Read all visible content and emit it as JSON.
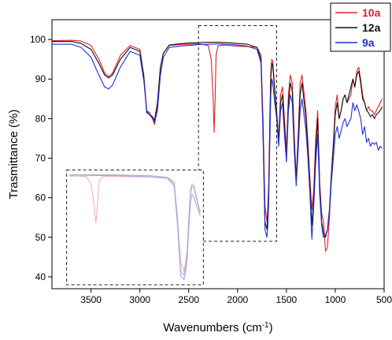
{
  "chart_data": {
    "type": "line",
    "xlabel": "Wavenumbers (cm",
    "xlabel_sup": "-1",
    "xlabel_suffix": ")",
    "ylabel": "Trasmittance (%)",
    "xlim": [
      3900,
      500
    ],
    "ylim": [
      37,
      105
    ],
    "x_reversed": true,
    "x_ticks": [
      3500,
      3000,
      2500,
      2000,
      1500,
      1000,
      500
    ],
    "y_ticks": [
      40,
      50,
      60,
      70,
      80,
      90,
      100
    ],
    "grid": false,
    "legend_position": "top-right",
    "series": [
      {
        "name": "10a",
        "color": "#e0202a",
        "x": [
          3900,
          3700,
          3600,
          3500,
          3420,
          3360,
          3320,
          3280,
          3200,
          3100,
          3000,
          2960,
          2930,
          2900,
          2870,
          2850,
          2820,
          2790,
          2760,
          2700,
          2600,
          2500,
          2400,
          2300,
          2270,
          2250,
          2240,
          2230,
          2220,
          2200,
          2150,
          2100,
          2000,
          1900,
          1800,
          1760,
          1740,
          1720,
          1700,
          1690,
          1680,
          1670,
          1660,
          1650,
          1640,
          1620,
          1600,
          1580,
          1560,
          1540,
          1520,
          1500,
          1480,
          1460,
          1440,
          1420,
          1400,
          1380,
          1360,
          1340,
          1300,
          1280,
          1260,
          1240,
          1220,
          1200,
          1180,
          1160,
          1140,
          1120,
          1100,
          1080,
          1060,
          1040,
          1020,
          1000,
          980,
          960,
          940,
          920,
          900,
          880,
          860,
          840,
          820,
          800,
          780,
          760,
          740,
          720,
          700,
          680,
          660,
          640,
          620,
          600,
          580,
          560,
          540,
          520
        ],
        "y": [
          99.7,
          99.8,
          99.6,
          98.5,
          95.0,
          91.5,
          90.6,
          91.5,
          96.0,
          98.5,
          97.5,
          91.0,
          82.0,
          81.5,
          80.0,
          78.5,
          83.0,
          93.0,
          96.5,
          98.5,
          98.7,
          98.8,
          98.9,
          98.5,
          95.0,
          85.0,
          76.5,
          85.0,
          96.0,
          98.4,
          98.6,
          98.5,
          98.3,
          98.2,
          98.0,
          96.0,
          80.0,
          58.0,
          54.0,
          57.5,
          64.0,
          80.0,
          92.0,
          95.0,
          94.5,
          88.0,
          82.0,
          75.0,
          86.0,
          88.0,
          80.0,
          72.0,
          86.0,
          91.0,
          89.0,
          76.0,
          65.0,
          76.0,
          89.0,
          91.0,
          82.0,
          74.0,
          65.0,
          57.0,
          62.0,
          75.0,
          82.0,
          64.0,
          56.0,
          54.0,
          46.5,
          47.5,
          55.0,
          66.0,
          74.0,
          83.0,
          86.0,
          80.0,
          82.0,
          85.0,
          86.0,
          84.0,
          85.0,
          86.0,
          90.0,
          88.0,
          92.0,
          93.0,
          90.0,
          86.0,
          84.0,
          82.0,
          83.0,
          82.0,
          82.0,
          81.0,
          82.0,
          83.0,
          84.0,
          85.0
        ]
      },
      {
        "name": "12a",
        "color": "#111111",
        "x": [
          3900,
          3700,
          3600,
          3500,
          3420,
          3360,
          3320,
          3280,
          3200,
          3100,
          3000,
          2960,
          2930,
          2900,
          2870,
          2850,
          2820,
          2790,
          2760,
          2700,
          2600,
          2500,
          2400,
          2300,
          2200,
          2100,
          2000,
          1900,
          1800,
          1760,
          1740,
          1720,
          1700,
          1690,
          1680,
          1670,
          1660,
          1650,
          1640,
          1620,
          1600,
          1580,
          1560,
          1540,
          1520,
          1500,
          1480,
          1460,
          1440,
          1420,
          1400,
          1380,
          1360,
          1340,
          1300,
          1280,
          1260,
          1240,
          1220,
          1200,
          1180,
          1160,
          1140,
          1120,
          1100,
          1080,
          1060,
          1040,
          1020,
          1000,
          980,
          960,
          940,
          920,
          900,
          880,
          860,
          840,
          820,
          800,
          780,
          760,
          740,
          720,
          700,
          680,
          660,
          640,
          620,
          600,
          580,
          560,
          540,
          520
        ],
        "y": [
          99.5,
          99.5,
          99.0,
          97.5,
          94.0,
          91.0,
          90.3,
          91.0,
          95.0,
          98.0,
          97.0,
          90.5,
          81.5,
          81.0,
          80.5,
          79.5,
          84.0,
          93.0,
          96.5,
          98.6,
          98.9,
          99.1,
          99.2,
          99.3,
          99.3,
          99.2,
          99.0,
          98.8,
          98.0,
          95.0,
          78.0,
          54.0,
          52.0,
          56.0,
          63.0,
          78.0,
          90.0,
          94.0,
          93.5,
          87.0,
          81.0,
          74.0,
          84.0,
          86.0,
          78.0,
          70.0,
          84.0,
          89.0,
          87.0,
          74.0,
          64.0,
          74.0,
          86.0,
          89.0,
          80.0,
          72.0,
          63.0,
          53.0,
          60.0,
          72.0,
          80.0,
          63.0,
          54.0,
          51.0,
          50.0,
          52.0,
          57.0,
          66.0,
          73.0,
          81.0,
          84.0,
          80.0,
          82.0,
          85.0,
          86.0,
          84.0,
          86.0,
          88.0,
          90.0,
          88.0,
          91.0,
          92.0,
          89.0,
          85.0,
          84.0,
          82.0,
          81.5,
          80.5,
          81.0,
          80.0,
          81.0,
          81.5,
          82.0,
          83.0
        ]
      },
      {
        "name": "9a",
        "color": "#1f2fd6",
        "x": [
          3900,
          3700,
          3600,
          3500,
          3420,
          3360,
          3320,
          3280,
          3200,
          3100,
          3000,
          2960,
          2930,
          2900,
          2870,
          2850,
          2820,
          2790,
          2760,
          2700,
          2600,
          2500,
          2400,
          2300,
          2200,
          2100,
          2000,
          1900,
          1800,
          1760,
          1740,
          1720,
          1700,
          1690,
          1680,
          1670,
          1660,
          1650,
          1640,
          1620,
          1600,
          1580,
          1560,
          1540,
          1520,
          1500,
          1480,
          1460,
          1440,
          1420,
          1400,
          1380,
          1360,
          1340,
          1300,
          1280,
          1260,
          1240,
          1220,
          1200,
          1180,
          1160,
          1140,
          1120,
          1100,
          1080,
          1060,
          1040,
          1020,
          1000,
          980,
          960,
          940,
          920,
          900,
          880,
          860,
          840,
          820,
          800,
          780,
          760,
          740,
          720,
          700,
          680,
          660,
          640,
          620,
          600,
          580,
          560,
          540,
          520
        ],
        "y": [
          98.8,
          98.8,
          98.0,
          95.5,
          91.0,
          88.0,
          87.5,
          88.5,
          93.0,
          97.0,
          96.0,
          89.5,
          82.0,
          81.0,
          80.0,
          79.0,
          82.0,
          91.0,
          95.5,
          98.0,
          98.3,
          98.5,
          98.7,
          98.8,
          98.9,
          98.8,
          98.6,
          98.3,
          97.5,
          94.0,
          76.0,
          52.0,
          50.0,
          53.0,
          60.0,
          74.0,
          86.0,
          90.0,
          89.0,
          84.0,
          80.0,
          73.0,
          82.0,
          84.0,
          76.0,
          69.0,
          82.0,
          86.0,
          84.0,
          72.0,
          63.0,
          72.0,
          82.0,
          85.0,
          77.0,
          70.0,
          61.0,
          49.5,
          58.0,
          69.0,
          76.0,
          61.0,
          53.0,
          50.0,
          50.5,
          52.0,
          56.0,
          64.0,
          70.0,
          76.0,
          78.0,
          75.0,
          77.0,
          79.0,
          80.0,
          78.0,
          79.0,
          80.0,
          84.0,
          82.0,
          83.5,
          82.0,
          80.0,
          76.0,
          78.0,
          74.0,
          75.0,
          73.0,
          74.0,
          73.5,
          74.0,
          72.0,
          73.0,
          72.5
        ]
      }
    ],
    "annotations": [
      {
        "type": "dashed-box",
        "x_range": [
          2400,
          1600
        ],
        "y_range": [
          49,
          103.5
        ]
      },
      {
        "type": "inset-dashed-box",
        "x_range": [
          3750,
          2350
        ],
        "y_range": [
          38,
          67
        ]
      }
    ]
  }
}
